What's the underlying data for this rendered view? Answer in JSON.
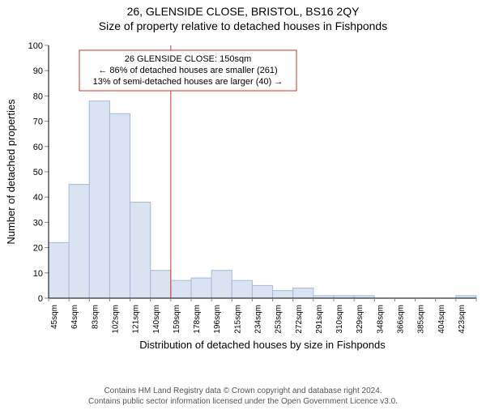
{
  "title_line1": "26, GLENSIDE CLOSE, BRISTOL, BS16 2QY",
  "title_line2": "Size of property relative to detached houses in Fishponds",
  "chart": {
    "type": "histogram",
    "y_axis_title": "Number of detached properties",
    "x_axis_title": "Distribution of detached houses by size in Fishponds",
    "ylim": [
      0,
      100
    ],
    "ytick_step": 10,
    "x_categories": [
      "45sqm",
      "64sqm",
      "83sqm",
      "102sqm",
      "121sqm",
      "140sqm",
      "159sqm",
      "178sqm",
      "196sqm",
      "215sqm",
      "234sqm",
      "253sqm",
      "272sqm",
      "291sqm",
      "310sqm",
      "329sqm",
      "348sqm",
      "366sqm",
      "385sqm",
      "404sqm",
      "423sqm"
    ],
    "values": [
      22,
      45,
      78,
      73,
      38,
      11,
      7,
      8,
      11,
      7,
      5,
      3,
      4,
      1,
      1,
      1,
      0,
      0,
      0,
      0,
      1
    ],
    "bar_fill": "#d9e3f2",
    "bar_stroke": "#a8b8d8",
    "axis_color": "#000000",
    "tick_color": "#888888",
    "background_color": "#ffffff",
    "marker_line_color": "#d03030",
    "marker_index_after_bar": 5,
    "label_fontsize": 11,
    "title_fontsize": 14,
    "bar_width_ratio": 1.0,
    "annotation": {
      "border_color": "#d03030",
      "line1": "26 GLENSIDE CLOSE: 150sqm",
      "line2": "← 86% of detached houses are smaller (261)",
      "line3": "13% of semi-detached houses are larger (40) →"
    }
  },
  "footer_line1": "Contains HM Land Registry data © Crown copyright and database right 2024.",
  "footer_line2": "Contains public sector information licensed under the Open Government Licence v3.0."
}
